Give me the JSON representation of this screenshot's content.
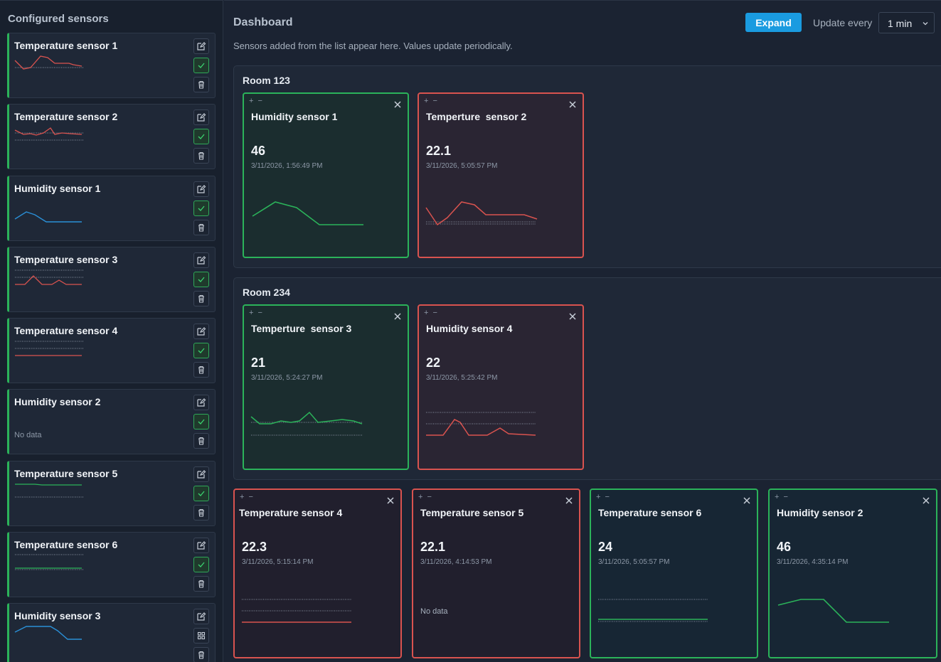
{
  "sidebar": {
    "title": "Configured sensors",
    "items": [
      {
        "label": "Temperature sensor 1",
        "no_data": ""
      },
      {
        "label": "Temperature sensor 2",
        "no_data": ""
      },
      {
        "label": "Humidity sensor 1",
        "no_data": ""
      },
      {
        "label": "Temperature sensor 3",
        "no_data": ""
      },
      {
        "label": "Temperature sensor 4",
        "no_data": ""
      },
      {
        "label": "Humidity sensor 2",
        "no_data": "No data"
      },
      {
        "label": "Temperature sensor 5",
        "no_data": ""
      },
      {
        "label": "Temperature sensor 6",
        "no_data": ""
      },
      {
        "label": "Humidity sensor 3",
        "no_data": ""
      }
    ]
  },
  "header": {
    "title": "Dashboard",
    "subtitle": "Sensors added from the list appear here. Values update periodically.",
    "expand_label": "Expand",
    "update_label": "Update every",
    "update_value": "1 min"
  },
  "rooms": [
    {
      "title": "Room 123"
    },
    {
      "title": "Room 234"
    }
  ],
  "widgets": {
    "room1_w1": {
      "name": "Humidity sensor 1",
      "value": "46",
      "time": "3/11/2026, 1:56:49 PM",
      "no_data": ""
    },
    "room1_w2": {
      "name": "Temperture  sensor 2",
      "value": "22.1",
      "time": "3/11/2026, 5:05:57 PM",
      "no_data": ""
    },
    "room2_w1": {
      "name": "Temperture  sensor 3",
      "value": "21",
      "time": "3/11/2026, 5:24:27 PM",
      "no_data": ""
    },
    "room2_w2": {
      "name": "Humidity sensor 4",
      "value": "22",
      "time": "3/11/2026, 5:25:42 PM",
      "no_data": ""
    },
    "free_w1": {
      "name": "Temperature sensor 4",
      "value": "22.3",
      "time": "3/11/2026, 5:15:14 PM",
      "no_data": ""
    },
    "free_w2": {
      "name": "Temperature sensor 5",
      "value": "22.1",
      "time": "3/11/2026, 4:14:53 PM",
      "no_data": "No data"
    },
    "free_w3": {
      "name": "Temperature sensor 6",
      "value": "24",
      "time": "3/11/2026, 5:05:57 PM",
      "no_data": ""
    },
    "free_w4": {
      "name": "Humidity sensor 2",
      "value": "46",
      "time": "3/11/2026, 4:35:14 PM",
      "no_data": ""
    }
  },
  "widget_controls": {
    "plus": "+",
    "minus": "−"
  },
  "icons": {
    "edit": "edit-icon",
    "check": "check-icon",
    "delete": "trash-icon",
    "grid": "grid-icon",
    "close": "close-icon",
    "chevron": "chevron-down-icon"
  },
  "colors": {
    "ok": "#2bb35a",
    "alert": "#d9534f",
    "humidity_line": "#2a8fd6",
    "accent": "#1a9be0"
  }
}
